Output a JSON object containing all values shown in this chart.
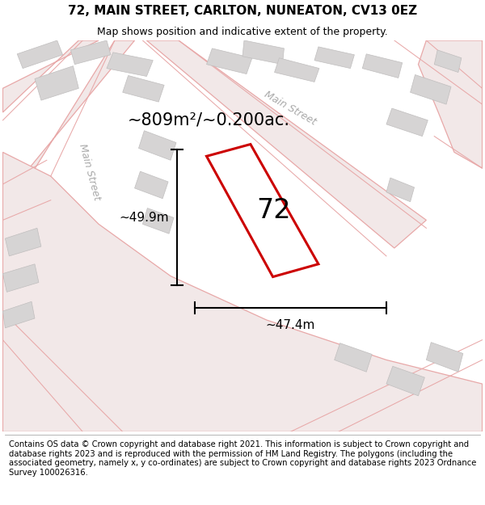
{
  "title": "72, MAIN STREET, CARLTON, NUNEATON, CV13 0EZ",
  "subtitle": "Map shows position and indicative extent of the property.",
  "footer": "Contains OS data © Crown copyright and database right 2021. This information is subject to Crown copyright and database rights 2023 and is reproduced with the permission of HM Land Registry. The polygons (including the associated geometry, namely x, y co-ordinates) are subject to Crown copyright and database rights 2023 Ordnance Survey 100026316.",
  "area_label": "~809m²/~0.200ac.",
  "property_number": "72",
  "dim_width": "~47.4m",
  "dim_height": "~49.9m",
  "map_bg": "#f7f4f4",
  "road_stroke": "#e8a8a8",
  "road_fill": "#f2e8e8",
  "property_fill": "#ffffff",
  "property_edge": "#cc0000",
  "building_fill": "#d6d4d4",
  "building_edge": "#c0bebe",
  "title_fontsize": 11,
  "subtitle_fontsize": 9,
  "footer_fontsize": 7.2,
  "area_fontsize": 15,
  "number_fontsize": 24,
  "street_fontsize": 9,
  "dim_fontsize": 11
}
